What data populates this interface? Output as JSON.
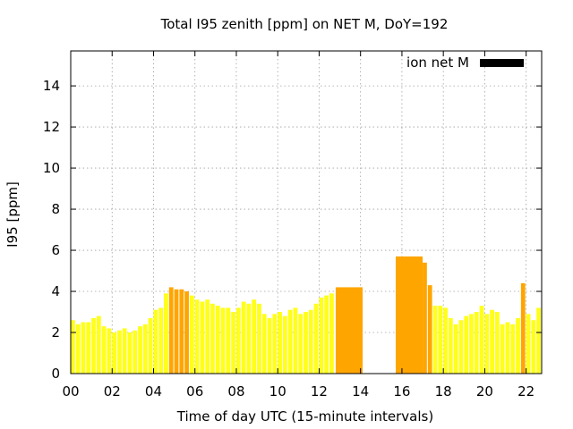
{
  "chart_data": {
    "type": "bar",
    "title": "Total I95 zenith [ppm] on NET M, DoY=192",
    "xlabel": "Time of day UTC (15-minute intervals)",
    "ylabel": "I95 [ppm]",
    "xlim": [
      0,
      22.75
    ],
    "ylim": [
      0,
      15.7
    ],
    "x_ticks": [
      0,
      2,
      4,
      6,
      8,
      10,
      12,
      14,
      16,
      18,
      20,
      22
    ],
    "x_tick_labels": [
      "00",
      "02",
      "04",
      "06",
      "08",
      "10",
      "12",
      "14",
      "16",
      "18",
      "20",
      "22"
    ],
    "y_ticks": [
      0,
      2,
      4,
      6,
      8,
      10,
      12,
      14
    ],
    "y_tick_labels": [
      "0",
      "2",
      "4",
      "6",
      "8",
      "10",
      "12",
      "14"
    ],
    "grid": true,
    "legend": {
      "placement": "top-right",
      "entries": [
        {
          "label": "ion net M",
          "color": "#000000"
        }
      ]
    },
    "bar_colors": {
      "normal": "#ffff1a",
      "elevated": "#ffa500"
    },
    "bars": [
      {
        "x": 0.0,
        "w": 0.25,
        "value": 2.6,
        "level": "normal"
      },
      {
        "x": 0.25,
        "w": 0.25,
        "value": 2.4,
        "level": "normal"
      },
      {
        "x": 0.5,
        "w": 0.25,
        "value": 2.5,
        "level": "normal"
      },
      {
        "x": 0.75,
        "w": 0.25,
        "value": 2.5,
        "level": "normal"
      },
      {
        "x": 1.0,
        "w": 0.25,
        "value": 2.7,
        "level": "normal"
      },
      {
        "x": 1.25,
        "w": 0.25,
        "value": 2.8,
        "level": "normal"
      },
      {
        "x": 1.5,
        "w": 0.25,
        "value": 2.3,
        "level": "normal"
      },
      {
        "x": 1.75,
        "w": 0.25,
        "value": 2.2,
        "level": "normal"
      },
      {
        "x": 2.0,
        "w": 0.25,
        "value": 2.0,
        "level": "normal"
      },
      {
        "x": 2.25,
        "w": 0.25,
        "value": 2.1,
        "level": "normal"
      },
      {
        "x": 2.5,
        "w": 0.25,
        "value": 2.2,
        "level": "normal"
      },
      {
        "x": 2.75,
        "w": 0.25,
        "value": 2.0,
        "level": "normal"
      },
      {
        "x": 3.0,
        "w": 0.25,
        "value": 2.1,
        "level": "normal"
      },
      {
        "x": 3.25,
        "w": 0.25,
        "value": 2.3,
        "level": "normal"
      },
      {
        "x": 3.5,
        "w": 0.25,
        "value": 2.4,
        "level": "normal"
      },
      {
        "x": 3.75,
        "w": 0.25,
        "value": 2.7,
        "level": "normal"
      },
      {
        "x": 4.0,
        "w": 0.25,
        "value": 3.1,
        "level": "normal"
      },
      {
        "x": 4.25,
        "w": 0.25,
        "value": 3.2,
        "level": "normal"
      },
      {
        "x": 4.5,
        "w": 0.25,
        "value": 3.9,
        "level": "normal"
      },
      {
        "x": 4.75,
        "w": 0.25,
        "value": 4.2,
        "level": "elevated"
      },
      {
        "x": 5.0,
        "w": 0.25,
        "value": 4.1,
        "level": "elevated"
      },
      {
        "x": 5.25,
        "w": 0.25,
        "value": 4.1,
        "level": "elevated"
      },
      {
        "x": 5.5,
        "w": 0.25,
        "value": 4.0,
        "level": "elevated"
      },
      {
        "x": 5.75,
        "w": 0.25,
        "value": 3.8,
        "level": "normal"
      },
      {
        "x": 6.0,
        "w": 0.25,
        "value": 3.6,
        "level": "normal"
      },
      {
        "x": 6.25,
        "w": 0.25,
        "value": 3.5,
        "level": "normal"
      },
      {
        "x": 6.5,
        "w": 0.25,
        "value": 3.6,
        "level": "normal"
      },
      {
        "x": 6.75,
        "w": 0.25,
        "value": 3.4,
        "level": "normal"
      },
      {
        "x": 7.0,
        "w": 0.25,
        "value": 3.3,
        "level": "normal"
      },
      {
        "x": 7.25,
        "w": 0.25,
        "value": 3.2,
        "level": "normal"
      },
      {
        "x": 7.5,
        "w": 0.25,
        "value": 3.2,
        "level": "normal"
      },
      {
        "x": 7.75,
        "w": 0.25,
        "value": 3.0,
        "level": "normal"
      },
      {
        "x": 8.0,
        "w": 0.25,
        "value": 3.2,
        "level": "normal"
      },
      {
        "x": 8.25,
        "w": 0.25,
        "value": 3.5,
        "level": "normal"
      },
      {
        "x": 8.5,
        "w": 0.25,
        "value": 3.4,
        "level": "normal"
      },
      {
        "x": 8.75,
        "w": 0.25,
        "value": 3.6,
        "level": "normal"
      },
      {
        "x": 9.0,
        "w": 0.25,
        "value": 3.4,
        "level": "normal"
      },
      {
        "x": 9.25,
        "w": 0.25,
        "value": 2.9,
        "level": "normal"
      },
      {
        "x": 9.5,
        "w": 0.25,
        "value": 2.7,
        "level": "normal"
      },
      {
        "x": 9.75,
        "w": 0.25,
        "value": 2.9,
        "level": "normal"
      },
      {
        "x": 10.0,
        "w": 0.25,
        "value": 3.0,
        "level": "normal"
      },
      {
        "x": 10.25,
        "w": 0.25,
        "value": 2.8,
        "level": "normal"
      },
      {
        "x": 10.5,
        "w": 0.25,
        "value": 3.1,
        "level": "normal"
      },
      {
        "x": 10.75,
        "w": 0.25,
        "value": 3.2,
        "level": "normal"
      },
      {
        "x": 11.0,
        "w": 0.25,
        "value": 2.9,
        "level": "normal"
      },
      {
        "x": 11.25,
        "w": 0.25,
        "value": 3.0,
        "level": "normal"
      },
      {
        "x": 11.5,
        "w": 0.25,
        "value": 3.1,
        "level": "normal"
      },
      {
        "x": 11.75,
        "w": 0.25,
        "value": 3.4,
        "level": "normal"
      },
      {
        "x": 12.0,
        "w": 0.25,
        "value": 3.7,
        "level": "normal"
      },
      {
        "x": 12.25,
        "w": 0.25,
        "value": 3.8,
        "level": "normal"
      },
      {
        "x": 12.5,
        "w": 0.25,
        "value": 3.9,
        "level": "normal"
      },
      {
        "x": 12.8,
        "w": 1.3,
        "value": 4.2,
        "level": "elevated"
      },
      {
        "x": 15.7,
        "w": 1.3,
        "value": 5.7,
        "level": "elevated"
      },
      {
        "x": 17.0,
        "w": 0.25,
        "value": 5.4,
        "level": "elevated"
      },
      {
        "x": 17.25,
        "w": 0.25,
        "value": 4.3,
        "level": "elevated"
      },
      {
        "x": 17.5,
        "w": 0.25,
        "value": 3.3,
        "level": "normal"
      },
      {
        "x": 17.75,
        "w": 0.25,
        "value": 3.3,
        "level": "normal"
      },
      {
        "x": 18.0,
        "w": 0.25,
        "value": 3.2,
        "level": "normal"
      },
      {
        "x": 18.25,
        "w": 0.25,
        "value": 2.7,
        "level": "normal"
      },
      {
        "x": 18.5,
        "w": 0.25,
        "value": 2.4,
        "level": "normal"
      },
      {
        "x": 18.75,
        "w": 0.25,
        "value": 2.6,
        "level": "normal"
      },
      {
        "x": 19.0,
        "w": 0.25,
        "value": 2.8,
        "level": "normal"
      },
      {
        "x": 19.25,
        "w": 0.25,
        "value": 2.9,
        "level": "normal"
      },
      {
        "x": 19.5,
        "w": 0.25,
        "value": 3.0,
        "level": "normal"
      },
      {
        "x": 19.75,
        "w": 0.25,
        "value": 3.3,
        "level": "normal"
      },
      {
        "x": 20.0,
        "w": 0.25,
        "value": 2.9,
        "level": "normal"
      },
      {
        "x": 20.25,
        "w": 0.25,
        "value": 3.1,
        "level": "normal"
      },
      {
        "x": 20.5,
        "w": 0.25,
        "value": 3.0,
        "level": "normal"
      },
      {
        "x": 20.75,
        "w": 0.25,
        "value": 2.4,
        "level": "normal"
      },
      {
        "x": 21.0,
        "w": 0.25,
        "value": 2.5,
        "level": "normal"
      },
      {
        "x": 21.25,
        "w": 0.25,
        "value": 2.4,
        "level": "normal"
      },
      {
        "x": 21.5,
        "w": 0.25,
        "value": 2.7,
        "level": "normal"
      },
      {
        "x": 21.75,
        "w": 0.25,
        "value": 4.4,
        "level": "elevated"
      },
      {
        "x": 22.0,
        "w": 0.25,
        "value": 2.9,
        "level": "normal"
      },
      {
        "x": 22.25,
        "w": 0.25,
        "value": 2.6,
        "level": "normal"
      },
      {
        "x": 22.5,
        "w": 0.25,
        "value": 3.2,
        "level": "normal"
      }
    ]
  }
}
